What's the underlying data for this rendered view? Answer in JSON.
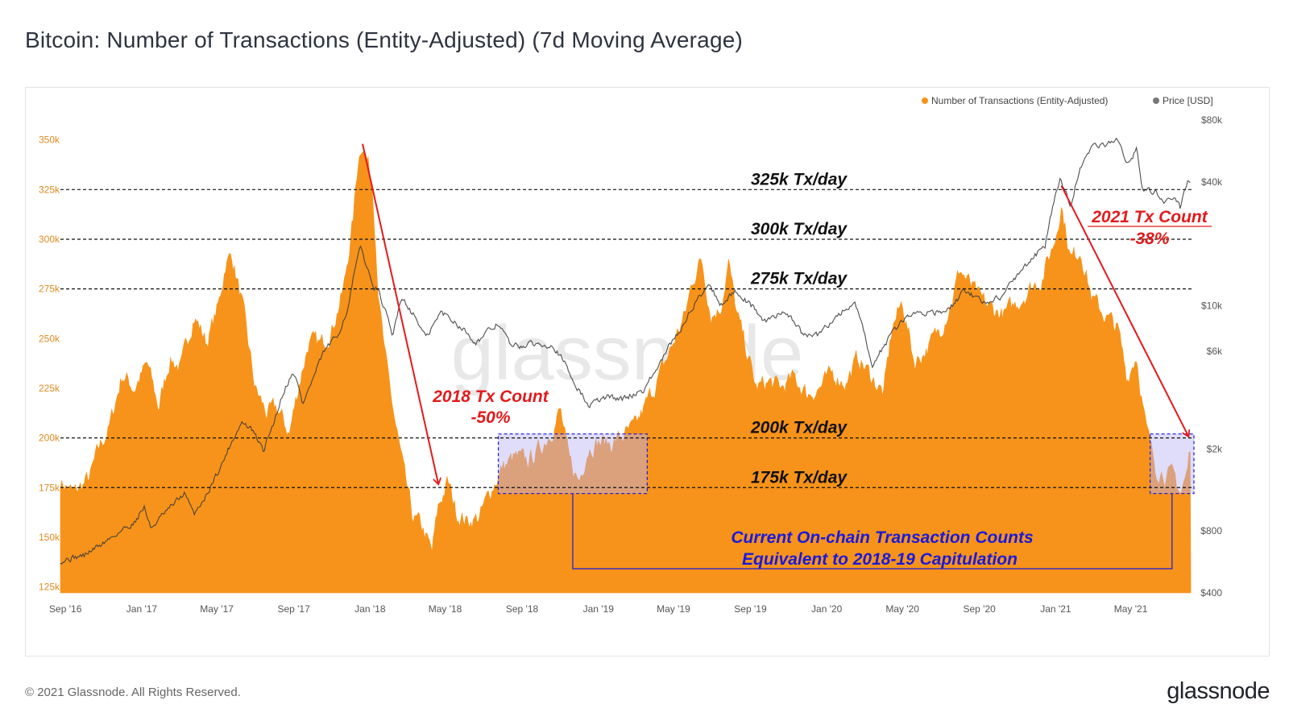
{
  "page": {
    "title": "Bitcoin: Number of Transactions (Entity-Adjusted) (7d Moving Average)",
    "copyright": "© 2021 Glassnode. All Rights Reserved.",
    "logo": "glassnode",
    "watermark": "glassnode"
  },
  "colors": {
    "tx": "#f7931a",
    "price": "#3c3c3c",
    "annotation_red": "#e31a1c",
    "annotation_blue": "#1a1adb",
    "highlight_fill": "#b9b3f5"
  },
  "chart_data": {
    "type": "area",
    "series": [
      {
        "name": "Number of Transactions (Entity-Adjusted)",
        "axis": "left",
        "points": [
          [
            "2016-08-24",
            178000
          ],
          [
            "2016-09-15",
            172000
          ],
          [
            "2016-10-10",
            180000
          ],
          [
            "2016-10-25",
            195000
          ],
          [
            "2016-11-10",
            205000
          ],
          [
            "2016-12-01",
            232000
          ],
          [
            "2016-12-20",
            225000
          ],
          [
            "2017-01-10",
            237000
          ],
          [
            "2017-01-28",
            215000
          ],
          [
            "2017-02-15",
            240000
          ],
          [
            "2017-03-05",
            235000
          ],
          [
            "2017-03-25",
            262000
          ],
          [
            "2017-04-15",
            248000
          ],
          [
            "2017-05-05",
            268000
          ],
          [
            "2017-05-15",
            288000
          ],
          [
            "2017-05-25",
            292000
          ],
          [
            "2017-06-10",
            268000
          ],
          [
            "2017-07-01",
            225000
          ],
          [
            "2017-07-20",
            212000
          ],
          [
            "2017-08-05",
            215000
          ],
          [
            "2017-08-25",
            202000
          ],
          [
            "2017-09-10",
            228000
          ],
          [
            "2017-09-25",
            248000
          ],
          [
            "2017-10-15",
            247000
          ],
          [
            "2017-11-01",
            255000
          ],
          [
            "2017-11-20",
            275000
          ],
          [
            "2017-12-05",
            310000
          ],
          [
            "2017-12-13",
            340000
          ],
          [
            "2017-12-20",
            350000
          ],
          [
            "2018-01-05",
            328000
          ],
          [
            "2018-01-15",
            270000
          ],
          [
            "2018-01-25",
            240000
          ],
          [
            "2018-02-10",
            208000
          ],
          [
            "2018-02-25",
            180000
          ],
          [
            "2018-03-10",
            160000
          ],
          [
            "2018-03-25",
            155000
          ],
          [
            "2018-04-10",
            142000
          ],
          [
            "2018-04-20",
            165000
          ],
          [
            "2018-05-05",
            178000
          ],
          [
            "2018-05-20",
            162000
          ],
          [
            "2018-06-05",
            158000
          ],
          [
            "2018-06-25",
            160000
          ],
          [
            "2018-07-15",
            175000
          ],
          [
            "2018-08-01",
            185000
          ],
          [
            "2018-08-20",
            190000
          ],
          [
            "2018-09-10",
            188000
          ],
          [
            "2018-10-01",
            195000
          ],
          [
            "2018-10-20",
            205000
          ],
          [
            "2018-11-01",
            214000
          ],
          [
            "2018-11-15",
            188000
          ],
          [
            "2018-12-01",
            178000
          ],
          [
            "2018-12-15",
            195000
          ],
          [
            "2019-01-01",
            198000
          ],
          [
            "2019-01-20",
            197000
          ],
          [
            "2019-02-10",
            201000
          ],
          [
            "2019-03-01",
            205000
          ],
          [
            "2019-03-20",
            218000
          ],
          [
            "2019-04-10",
            232000
          ],
          [
            "2019-05-01",
            248000
          ],
          [
            "2019-05-20",
            262000
          ],
          [
            "2019-06-01",
            280000
          ],
          [
            "2019-06-15",
            290000
          ],
          [
            "2019-06-30",
            262000
          ],
          [
            "2019-07-15",
            265000
          ],
          [
            "2019-07-28",
            288000
          ],
          [
            "2019-08-10",
            262000
          ],
          [
            "2019-08-25",
            245000
          ],
          [
            "2019-09-10",
            225000
          ],
          [
            "2019-10-01",
            228000
          ],
          [
            "2019-10-20",
            225000
          ],
          [
            "2019-11-10",
            230000
          ],
          [
            "2019-12-01",
            222000
          ],
          [
            "2019-12-20",
            225000
          ],
          [
            "2020-01-10",
            232000
          ],
          [
            "2020-02-01",
            228000
          ],
          [
            "2020-02-20",
            240000
          ],
          [
            "2020-03-10",
            232000
          ],
          [
            "2020-04-01",
            222000
          ],
          [
            "2020-04-15",
            256000
          ],
          [
            "2020-05-01",
            268000
          ],
          [
            "2020-05-20",
            238000
          ],
          [
            "2020-06-10",
            245000
          ],
          [
            "2020-07-01",
            255000
          ],
          [
            "2020-07-20",
            270000
          ],
          [
            "2020-08-01",
            285000
          ],
          [
            "2020-08-15",
            278000
          ],
          [
            "2020-09-01",
            270000
          ],
          [
            "2020-09-20",
            265000
          ],
          [
            "2020-10-10",
            262000
          ],
          [
            "2020-11-01",
            268000
          ],
          [
            "2020-11-20",
            275000
          ],
          [
            "2020-12-10",
            280000
          ],
          [
            "2020-12-31",
            300000
          ],
          [
            "2021-01-10",
            318000
          ],
          [
            "2021-01-25",
            290000
          ],
          [
            "2021-02-10",
            295000
          ],
          [
            "2021-02-28",
            270000
          ],
          [
            "2021-03-20",
            262000
          ],
          [
            "2021-04-10",
            255000
          ],
          [
            "2021-04-25",
            230000
          ],
          [
            "2021-05-10",
            242000
          ],
          [
            "2021-05-25",
            205000
          ],
          [
            "2021-06-10",
            185000
          ],
          [
            "2021-06-25",
            182000
          ],
          [
            "2021-07-10",
            180000
          ],
          [
            "2021-07-20",
            172000
          ],
          [
            "2021-07-30",
            182000
          ],
          [
            "2021-08-05",
            198000
          ]
        ]
      },
      {
        "name": "Price [USD]",
        "axis": "right",
        "scale": "log",
        "points": [
          [
            "2016-08-24",
            575
          ],
          [
            "2016-10-01",
            610
          ],
          [
            "2016-11-01",
            700
          ],
          [
            "2016-12-20",
            880
          ],
          [
            "2017-01-05",
            1050
          ],
          [
            "2017-01-15",
            820
          ],
          [
            "2017-02-15",
            1030
          ],
          [
            "2017-03-10",
            1220
          ],
          [
            "2017-03-25",
            960
          ],
          [
            "2017-04-15",
            1200
          ],
          [
            "2017-05-10",
            1700
          ],
          [
            "2017-06-10",
            2700
          ],
          [
            "2017-06-25",
            2500
          ],
          [
            "2017-07-15",
            1950
          ],
          [
            "2017-08-01",
            2750
          ],
          [
            "2017-08-20",
            4100
          ],
          [
            "2017-09-01",
            4800
          ],
          [
            "2017-09-15",
            3300
          ],
          [
            "2017-10-01",
            4300
          ],
          [
            "2017-10-20",
            6000
          ],
          [
            "2017-11-10",
            7100
          ],
          [
            "2017-11-28",
            9900
          ],
          [
            "2017-12-17",
            19200
          ],
          [
            "2018-01-01",
            13500
          ],
          [
            "2018-01-15",
            11500
          ],
          [
            "2018-02-06",
            6900
          ],
          [
            "2018-02-20",
            11100
          ],
          [
            "2018-03-10",
            9200
          ],
          [
            "2018-04-01",
            6900
          ],
          [
            "2018-04-25",
            9300
          ],
          [
            "2018-05-20",
            8200
          ],
          [
            "2018-06-20",
            6600
          ],
          [
            "2018-07-25",
            8200
          ],
          [
            "2018-08-15",
            6300
          ],
          [
            "2018-09-20",
            6500
          ],
          [
            "2018-10-20",
            6500
          ],
          [
            "2018-11-20",
            4400
          ],
          [
            "2018-12-15",
            3250
          ],
          [
            "2019-01-15",
            3600
          ],
          [
            "2019-02-08",
            3500
          ],
          [
            "2019-03-15",
            3900
          ],
          [
            "2019-04-10",
            5200
          ],
          [
            "2019-05-15",
            7900
          ],
          [
            "2019-06-26",
            12800
          ],
          [
            "2019-07-15",
            10100
          ],
          [
            "2019-08-10",
            11800
          ],
          [
            "2019-09-25",
            8300
          ],
          [
            "2019-10-26",
            9500
          ],
          [
            "2019-11-25",
            7100
          ],
          [
            "2019-12-20",
            7200
          ],
          [
            "2020-01-15",
            8800
          ],
          [
            "2020-02-14",
            10300
          ],
          [
            "2020-03-13",
            4900
          ],
          [
            "2020-04-10",
            7000
          ],
          [
            "2020-05-10",
            9000
          ],
          [
            "2020-06-15",
            9400
          ],
          [
            "2020-07-10",
            9200
          ],
          [
            "2020-08-10",
            11800
          ],
          [
            "2020-09-10",
            10300
          ],
          [
            "2020-10-10",
            11300
          ],
          [
            "2020-11-10",
            15300
          ],
          [
            "2020-12-15",
            19400
          ],
          [
            "2021-01-08",
            40000
          ],
          [
            "2021-01-25",
            31000
          ],
          [
            "2021-02-20",
            57000
          ],
          [
            "2021-03-13",
            60000
          ],
          [
            "2021-04-13",
            63500
          ],
          [
            "2021-04-25",
            49000
          ],
          [
            "2021-05-10",
            57000
          ],
          [
            "2021-05-19",
            37000
          ],
          [
            "2021-06-10",
            36000
          ],
          [
            "2021-06-22",
            31500
          ],
          [
            "2021-07-10",
            33500
          ],
          [
            "2021-07-20",
            29700
          ],
          [
            "2021-07-31",
            41500
          ],
          [
            "2021-08-05",
            39500
          ]
        ]
      }
    ],
    "x_ticks": [
      "Sep '16",
      "Jan '17",
      "May '17",
      "Sep '17",
      "Jan '18",
      "May '18",
      "Sep '18",
      "Jan '19",
      "May '19",
      "Sep '19",
      "Jan '20",
      "May '20",
      "Sep '20",
      "Jan '21",
      "May '21"
    ],
    "y_left_ticks": [
      "125k",
      "150k",
      "175k",
      "200k",
      "225k",
      "250k",
      "275k",
      "300k",
      "325k",
      "350k"
    ],
    "y_right_ticks": [
      "$400",
      "$800",
      "$2k",
      "$6k",
      "$10k",
      "$40k",
      "$80k"
    ],
    "xlim": [
      "2016-08-24",
      "2021-08-10"
    ],
    "ylim_left": [
      122000,
      360000
    ],
    "ylim_right": [
      400,
      80000
    ],
    "legend_placement": "top-right",
    "grid": false,
    "reference_lines": [
      {
        "value": 325000,
        "label": "325k Tx/day"
      },
      {
        "value": 300000,
        "label": "300k Tx/day"
      },
      {
        "value": 275000,
        "label": "275k Tx/day"
      },
      {
        "value": 200000,
        "label": "200k Tx/day"
      },
      {
        "value": 175000,
        "label": "175k Tx/day"
      }
    ],
    "annotations": {
      "decline_2018": {
        "line1": "2018 Tx Count",
        "line2": "-50%",
        "from": [
          "2017-12-20",
          348000
        ],
        "to": [
          "2018-04-20",
          177000
        ]
      },
      "decline_2021": {
        "line1": "2021 Tx Count",
        "line2": "-38%",
        "from": [
          "2021-01-10",
          327000
        ],
        "to": [
          "2021-08-01",
          201000
        ]
      },
      "capitulation_note": {
        "line1": "Current On-chain Transaction Counts",
        "line2": "Equivalent to 2018-19 Capitulation"
      },
      "highlight_2018_19": [
        "2018-07-25",
        "2019-03-20",
        172000,
        202000
      ],
      "highlight_2021": [
        "2021-06-01",
        "2021-08-10",
        172000,
        202000
      ]
    }
  }
}
